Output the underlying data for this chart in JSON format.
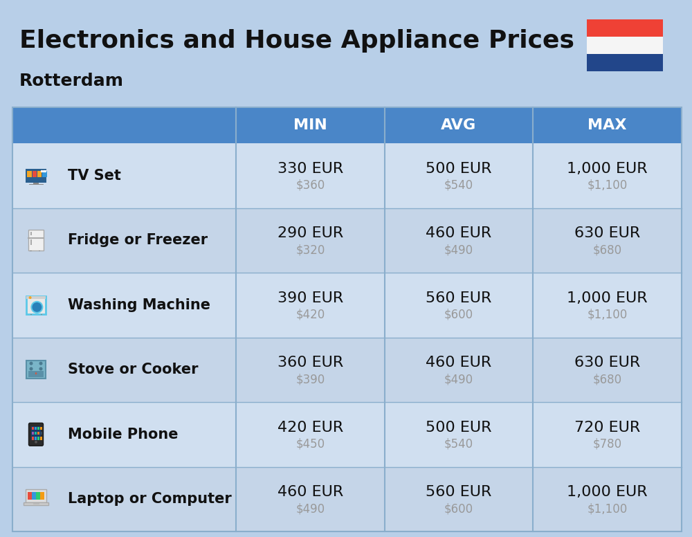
{
  "title": "Electronics and House Appliance Prices",
  "subtitle": "Rotterdam",
  "background_color": "#b8cfe8",
  "header_bg_color": "#4a86c8",
  "header_text_color": "#ffffff",
  "row_bg_color_light": "#c5d5e8",
  "row_bg_color_dark": "#d0dff0",
  "divider_color": "#8aaecc",
  "columns": [
    "MIN",
    "AVG",
    "MAX"
  ],
  "rows": [
    {
      "name": "TV Set",
      "icon": "tv",
      "min_eur": "330 EUR",
      "min_usd": "$360",
      "avg_eur": "500 EUR",
      "avg_usd": "$540",
      "max_eur": "1,000 EUR",
      "max_usd": "$1,100"
    },
    {
      "name": "Fridge or Freezer",
      "icon": "fridge",
      "min_eur": "290 EUR",
      "min_usd": "$320",
      "avg_eur": "460 EUR",
      "avg_usd": "$490",
      "max_eur": "630 EUR",
      "max_usd": "$680"
    },
    {
      "name": "Washing Machine",
      "icon": "washing",
      "min_eur": "390 EUR",
      "min_usd": "$420",
      "avg_eur": "560 EUR",
      "avg_usd": "$600",
      "max_eur": "1,000 EUR",
      "max_usd": "$1,100"
    },
    {
      "name": "Stove or Cooker",
      "icon": "stove",
      "min_eur": "360 EUR",
      "min_usd": "$390",
      "avg_eur": "460 EUR",
      "avg_usd": "$490",
      "max_eur": "630 EUR",
      "max_usd": "$680"
    },
    {
      "name": "Mobile Phone",
      "icon": "phone",
      "min_eur": "420 EUR",
      "min_usd": "$450",
      "avg_eur": "500 EUR",
      "avg_usd": "$540",
      "max_eur": "720 EUR",
      "max_usd": "$780"
    },
    {
      "name": "Laptop or Computer",
      "icon": "laptop",
      "min_eur": "460 EUR",
      "min_usd": "$490",
      "avg_eur": "560 EUR",
      "avg_usd": "$600",
      "max_eur": "1,000 EUR",
      "max_usd": "$1,100"
    }
  ],
  "flag_colors": [
    "#ef4135",
    "#f5f5f5",
    "#22468a"
  ],
  "text_color_dark": "#111111",
  "text_color_usd": "#999999",
  "name_font_size": 15,
  "value_eur_font_size": 16,
  "value_usd_font_size": 12,
  "header_font_size": 16
}
